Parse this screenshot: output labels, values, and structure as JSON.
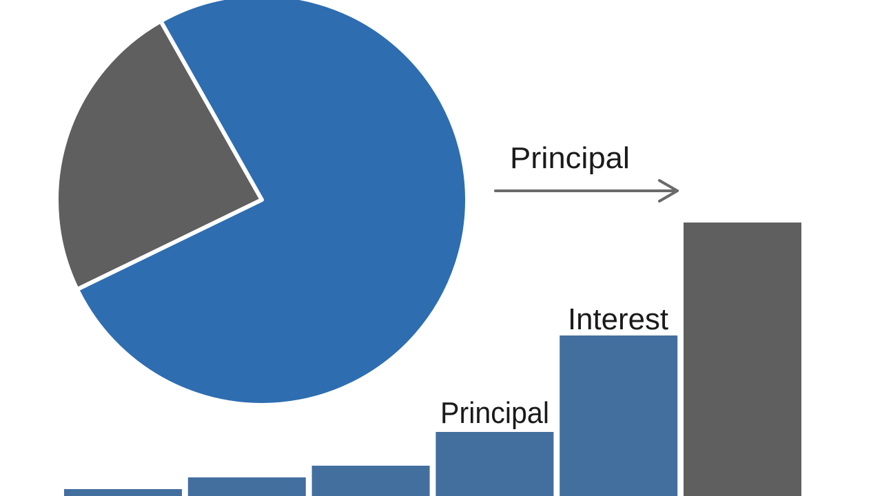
{
  "chart_data": [
    {
      "type": "pie",
      "values": [
        24,
        76
      ],
      "colors": [
        "#5f5f5f",
        "#2e6db0"
      ]
    },
    {
      "type": "bar",
      "values": [
        10,
        27,
        44,
        93,
        233,
        397
      ],
      "colors": [
        "#436f9f",
        "#436f9f",
        "#436f9f",
        "#436f9f",
        "#436f9f",
        "#5f5f5f"
      ],
      "ylim": [
        0,
        400
      ],
      "annotations": [
        "Principal",
        "Interest",
        "Principal"
      ]
    }
  ]
}
